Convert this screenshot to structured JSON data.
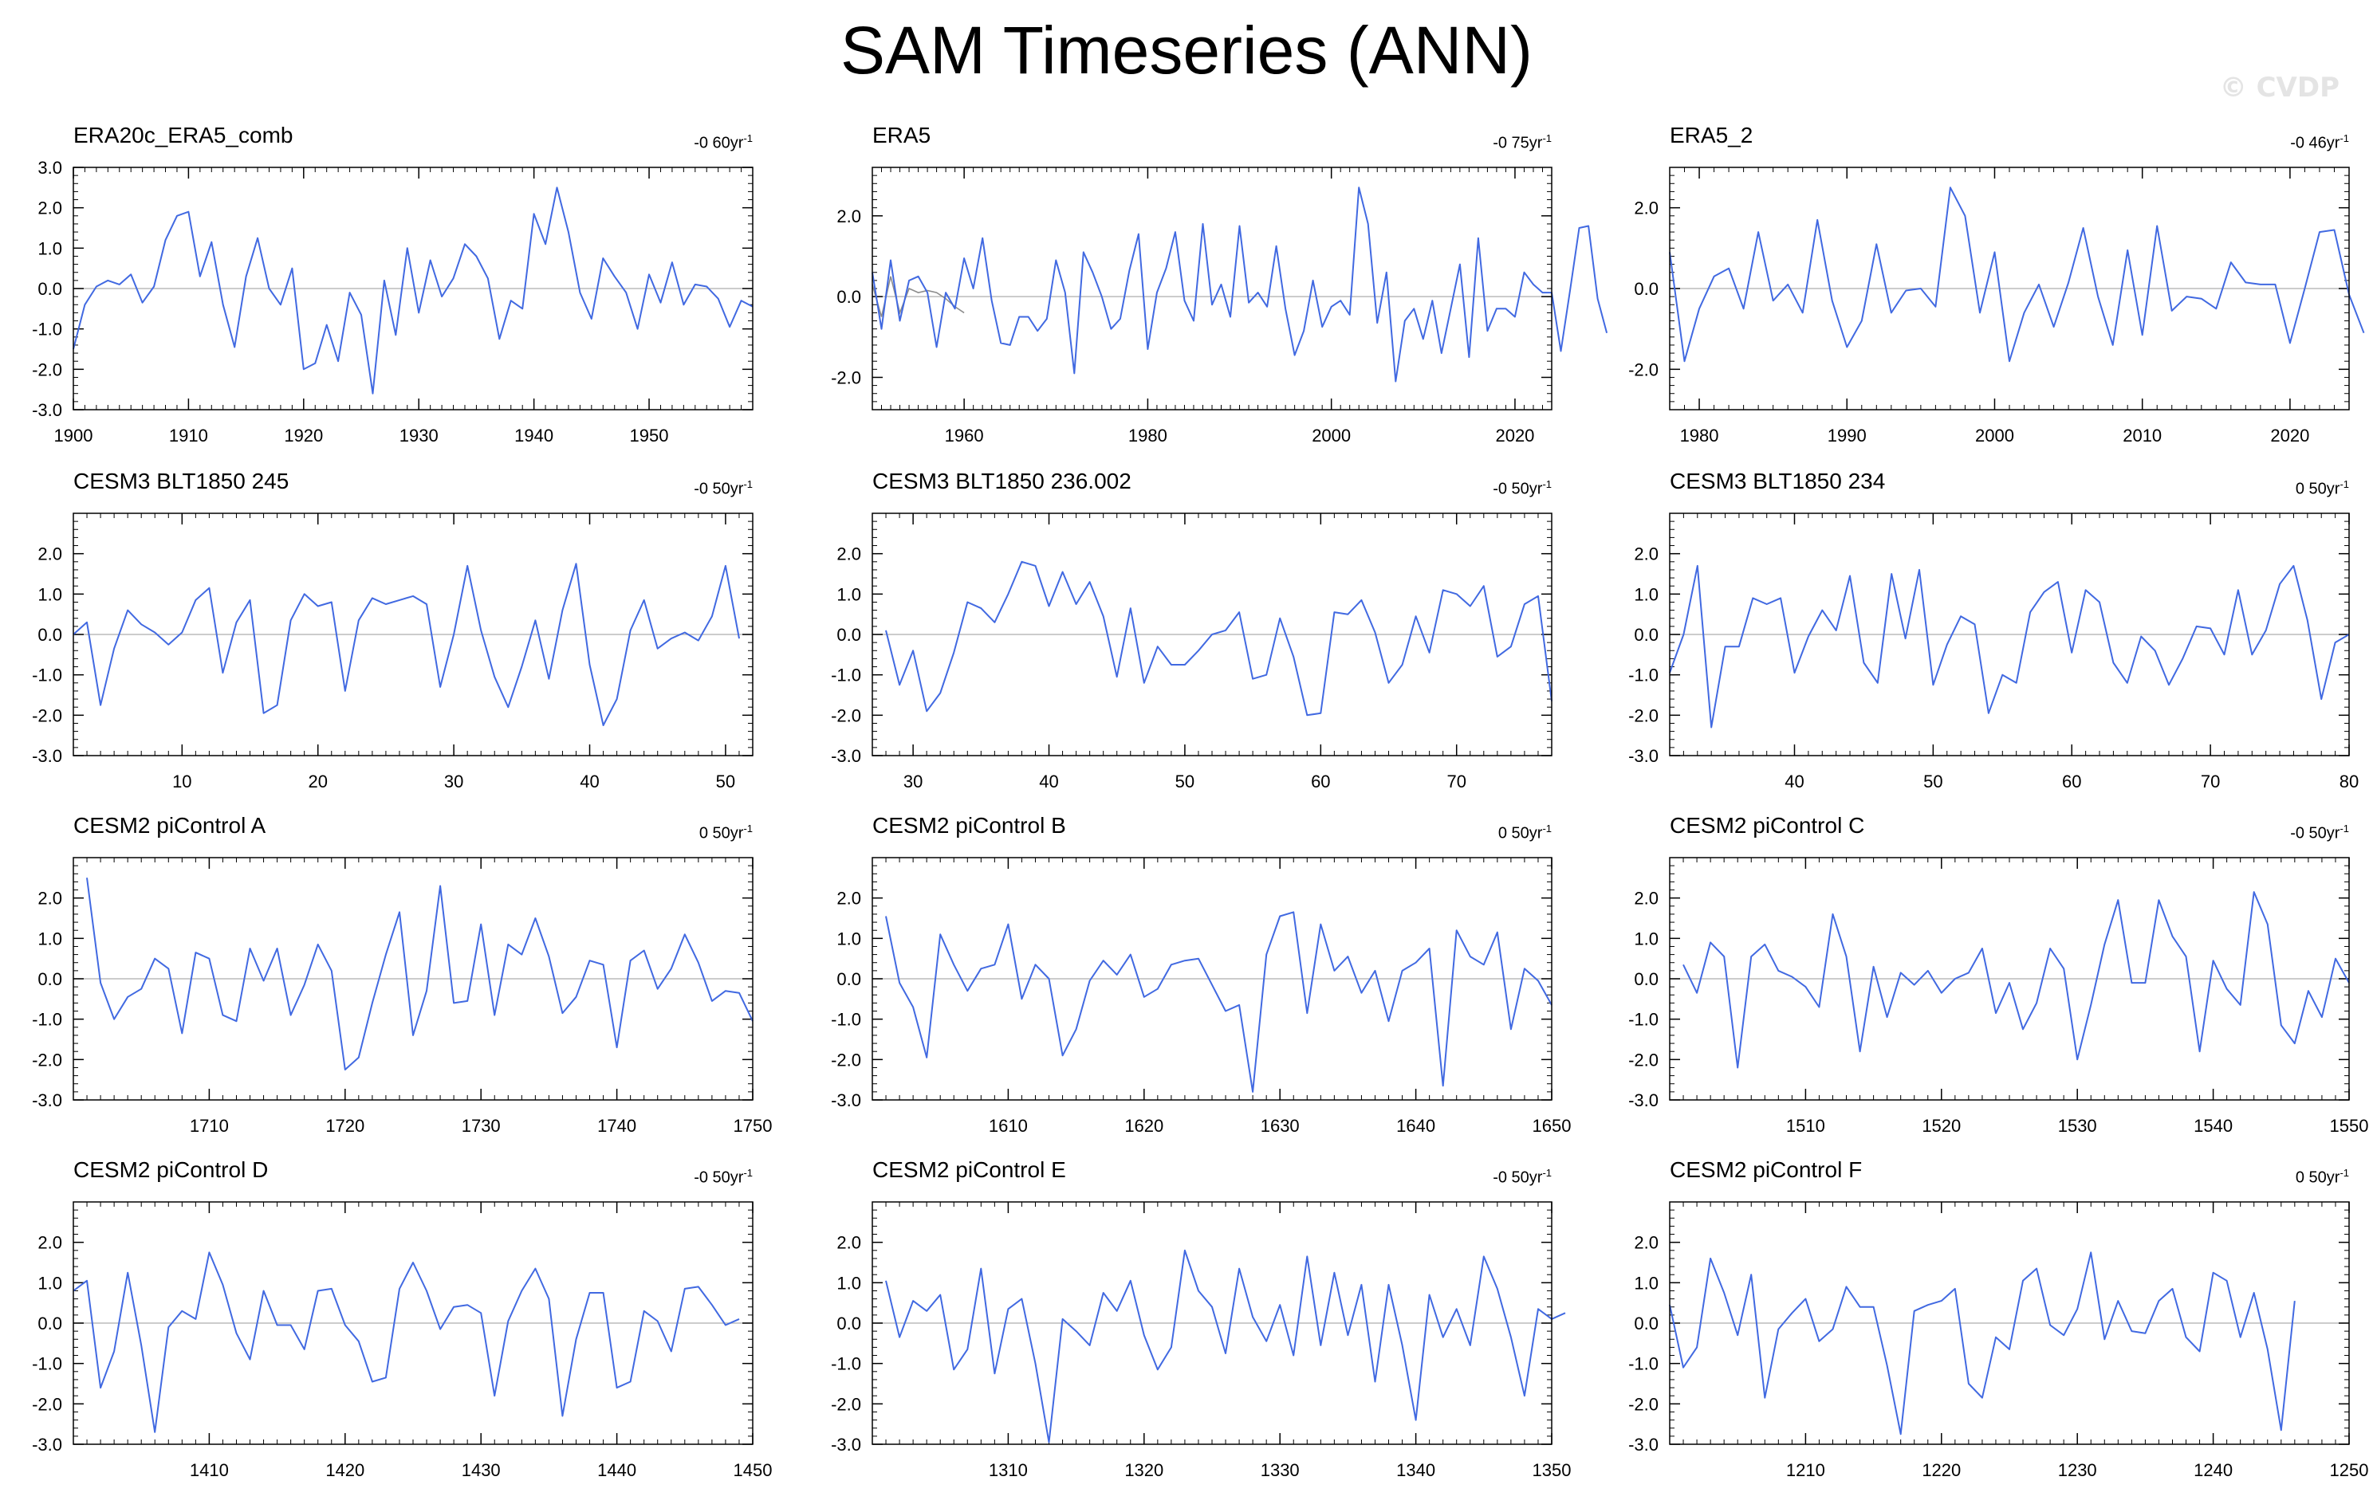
{
  "title": "SAM Timeseries (ANN)",
  "watermark": "© CVDP",
  "colors": {
    "series": "#4169e1",
    "secondary": "#8c8c8c",
    "zero_line": "#bcbcbc",
    "axis": "#000000"
  },
  "chart_data": [
    {
      "type": "line",
      "title": "ERA20c_ERA5_comb",
      "trend": "-0 60yr",
      "trend_unit": "-1",
      "xlim": [
        1900,
        1959
      ],
      "ylim": [
        -3.0,
        3.0
      ],
      "x_ticks": [
        1900,
        1910,
        1920,
        1930,
        1940,
        1950
      ],
      "x_tick_labels": [
        "1900",
        "1910",
        "1920",
        "1930",
        "1940",
        "1950"
      ],
      "y_ticks": [
        3.0,
        2.0,
        1.0,
        0.0,
        -1.0,
        -2.0,
        -3.0
      ],
      "y_tick_labels": [
        "3.0",
        "2.0",
        "1.0",
        "0.0",
        "-1.0",
        "-2.0",
        "-3.0"
      ],
      "x_start": 1900,
      "values": [
        -1.5,
        -0.4,
        0.05,
        0.2,
        0.1,
        0.35,
        -0.35,
        0.05,
        1.2,
        1.8,
        1.9,
        0.3,
        1.15,
        -0.4,
        -1.45,
        0.3,
        1.25,
        0.0,
        -0.4,
        0.5,
        -2.0,
        -1.85,
        -0.9,
        -1.8,
        -0.1,
        -0.65,
        -2.6,
        0.2,
        -1.15,
        1.0,
        -0.6,
        0.7,
        -0.2,
        0.25,
        1.1,
        0.8,
        0.25,
        -1.25,
        -0.3,
        -0.5,
        1.85,
        1.1,
        2.5,
        1.4,
        -0.1,
        -0.75,
        0.75,
        0.3,
        -0.1,
        -1.0,
        0.35,
        -0.35,
        0.65,
        -0.4,
        0.1,
        0.05,
        -0.25,
        -0.95,
        -0.3,
        -0.45
      ]
    },
    {
      "type": "line",
      "title": "ERA5",
      "trend": "-0 75yr",
      "trend_unit": "-1",
      "xlim": [
        1950,
        2024
      ],
      "ylim": [
        -2.8,
        3.2
      ],
      "x_ticks": [
        1960,
        1980,
        2000,
        2020
      ],
      "x_tick_labels": [
        "1960",
        "1980",
        "2000",
        "2020"
      ],
      "y_ticks": [
        2.0,
        0.0,
        -2.0
      ],
      "y_tick_labels": [
        "2.0",
        "0.0",
        "-2.0"
      ],
      "x_start": 1950,
      "values": [
        0.6,
        -0.8,
        0.9,
        -0.6,
        0.4,
        0.5,
        0.1,
        -1.25,
        0.1,
        -0.3,
        0.95,
        0.2,
        1.45,
        -0.1,
        -1.15,
        -1.2,
        -0.5,
        -0.5,
        -0.85,
        -0.55,
        0.9,
        0.1,
        -1.9,
        1.1,
        0.6,
        0.0,
        -0.8,
        -0.55,
        0.65,
        1.55,
        -1.3,
        0.1,
        0.7,
        1.6,
        -0.1,
        -0.6,
        1.8,
        -0.2,
        0.3,
        -0.5,
        1.75,
        -0.15,
        0.1,
        -0.25,
        1.25,
        -0.3,
        -1.45,
        -0.85,
        0.4,
        -0.75,
        -0.25,
        -0.1,
        -0.45,
        2.7,
        1.8,
        -0.65,
        0.6,
        -2.1,
        -0.6,
        -0.3,
        -1.05,
        -0.1,
        -1.4,
        -0.3,
        0.8,
        -1.5,
        1.45,
        -0.85,
        -0.3,
        -0.3,
        -0.5,
        0.6,
        0.3,
        0.1,
        0.1,
        -1.35,
        0.15,
        1.7,
        1.75,
        -0.05,
        -0.9
      ],
      "secondary_x_start": 1950,
      "secondary_values": [
        0.3,
        -0.5,
        0.5,
        -0.4,
        0.2,
        0.1,
        0.15,
        0.1,
        -0.05,
        -0.25,
        -0.4
      ]
    },
    {
      "type": "line",
      "title": "ERA5_2",
      "trend": "-0 46yr",
      "trend_unit": "-1",
      "xlim": [
        1978,
        2024
      ],
      "ylim": [
        -3.0,
        3.0
      ],
      "x_ticks": [
        1980,
        1990,
        2000,
        2010,
        2020
      ],
      "x_tick_labels": [
        "1980",
        "1990",
        "2000",
        "2010",
        "2020"
      ],
      "y_ticks": [
        2.0,
        0.0,
        -2.0
      ],
      "y_tick_labels": [
        "2.0",
        "0.0",
        "-2.0"
      ],
      "x_start": 1978,
      "values": [
        0.9,
        -1.8,
        -0.5,
        0.3,
        0.5,
        -0.5,
        1.4,
        -0.3,
        0.1,
        -0.6,
        1.7,
        -0.3,
        -1.45,
        -0.8,
        1.1,
        -0.6,
        -0.05,
        0.0,
        -0.45,
        2.5,
        1.8,
        -0.6,
        0.9,
        -1.8,
        -0.6,
        0.1,
        -0.95,
        0.15,
        1.5,
        -0.2,
        -1.4,
        0.95,
        -1.15,
        1.55,
        -0.55,
        -0.2,
        -0.25,
        -0.5,
        0.65,
        0.15,
        0.1,
        0.1,
        -1.35,
        0.0,
        1.4,
        1.45,
        -0.15,
        -1.1
      ]
    },
    {
      "type": "line",
      "title": "CESM3 BLT1850 245",
      "trend": "-0 50yr",
      "trend_unit": "-1",
      "xlim": [
        2,
        52
      ],
      "ylim": [
        -3.0,
        3.0
      ],
      "x_ticks": [
        10,
        20,
        30,
        40,
        50
      ],
      "x_tick_labels": [
        "10",
        "20",
        "30",
        "40",
        "50"
      ],
      "y_ticks": [
        2.0,
        1.0,
        0.0,
        -1.0,
        -2.0,
        -3.0
      ],
      "y_tick_labels": [
        "2.0",
        "1.0",
        "0.0",
        "-1.0",
        "-2.0",
        "-3.0"
      ],
      "x_start": 2,
      "values": [
        0.0,
        0.3,
        -1.75,
        -0.35,
        0.6,
        0.25,
        0.05,
        -0.25,
        0.05,
        0.85,
        1.15,
        -0.95,
        0.3,
        0.85,
        -1.95,
        -1.75,
        0.35,
        1.0,
        0.7,
        0.8,
        -1.4,
        0.35,
        0.9,
        0.75,
        0.85,
        0.95,
        0.75,
        -1.3,
        0.0,
        1.7,
        0.1,
        -1.05,
        -1.8,
        -0.8,
        0.35,
        -1.1,
        0.6,
        1.75,
        -0.75,
        -2.25,
        -1.6,
        0.1,
        0.85,
        -0.35,
        -0.1,
        0.05,
        -0.15,
        0.45,
        1.7,
        -0.1
      ]
    },
    {
      "type": "line",
      "title": "CESM3 BLT1850 236.002",
      "trend": "-0 50yr",
      "trend_unit": "-1",
      "xlim": [
        27,
        77
      ],
      "ylim": [
        -3.0,
        3.0
      ],
      "x_ticks": [
        30,
        40,
        50,
        60,
        70
      ],
      "x_tick_labels": [
        "30",
        "40",
        "50",
        "60",
        "70"
      ],
      "y_ticks": [
        2.0,
        1.0,
        0.0,
        -1.0,
        -2.0,
        -3.0
      ],
      "y_tick_labels": [
        "2.0",
        "1.0",
        "0.0",
        "-1.0",
        "-2.0",
        "-3.0"
      ],
      "x_start": 28,
      "values": [
        0.1,
        -1.25,
        -0.4,
        -1.9,
        -1.45,
        -0.45,
        0.8,
        0.65,
        0.3,
        1.0,
        1.8,
        1.7,
        0.7,
        1.55,
        0.75,
        1.3,
        0.45,
        -1.05,
        0.65,
        -1.2,
        -0.3,
        -0.75,
        -0.75,
        -0.4,
        0.0,
        0.1,
        0.55,
        -1.1,
        -1.0,
        0.4,
        -0.55,
        -2.0,
        -1.95,
        0.55,
        0.5,
        0.85,
        0.05,
        -1.2,
        -0.75,
        0.45,
        -0.45,
        1.1,
        1.0,
        0.7,
        1.2,
        -0.55,
        -0.3,
        0.75,
        0.95,
        -1.65
      ]
    },
    {
      "type": "line",
      "title": "CESM3 BLT1850 234",
      "trend": "0 50yr",
      "trend_unit": "-1",
      "xlim": [
        31,
        80
      ],
      "ylim": [
        -3.0,
        3.0
      ],
      "x_ticks": [
        40,
        50,
        60,
        70,
        80
      ],
      "x_tick_labels": [
        "40",
        "50",
        "60",
        "70",
        "80"
      ],
      "y_ticks": [
        2.0,
        1.0,
        0.0,
        -1.0,
        -2.0,
        -3.0
      ],
      "y_tick_labels": [
        "2.0",
        "1.0",
        "0.0",
        "-1.0",
        "-2.0",
        "-3.0"
      ],
      "x_start": 31,
      "values": [
        -0.95,
        0.0,
        1.7,
        -2.3,
        -0.3,
        -0.3,
        0.9,
        0.75,
        0.9,
        -0.95,
        -0.05,
        0.6,
        0.1,
        1.45,
        -0.7,
        -1.2,
        1.5,
        -0.1,
        1.6,
        -1.25,
        -0.25,
        0.45,
        0.25,
        -1.95,
        -1.0,
        -1.2,
        0.55,
        1.05,
        1.3,
        -0.45,
        1.1,
        0.8,
        -0.7,
        -1.2,
        -0.05,
        -0.4,
        -1.25,
        -0.6,
        0.2,
        0.15,
        -0.5,
        1.1,
        -0.5,
        0.1,
        1.25,
        1.7,
        0.35,
        -1.6,
        -0.2,
        0.0
      ]
    },
    {
      "type": "line",
      "title": "CESM2 piControl A",
      "trend": "0 50yr",
      "trend_unit": "-1",
      "xlim": [
        1700,
        1750
      ],
      "ylim": [
        -3.0,
        3.0
      ],
      "x_ticks": [
        1710,
        1720,
        1730,
        1740,
        1750
      ],
      "x_tick_labels": [
        "1710",
        "1720",
        "1730",
        "1740",
        "1750"
      ],
      "y_ticks": [
        2.0,
        1.0,
        0.0,
        -1.0,
        -2.0,
        -3.0
      ],
      "y_tick_labels": [
        "2.0",
        "1.0",
        "0.0",
        "-1.0",
        "-2.0",
        "-3.0"
      ],
      "x_start": 1701,
      "values": [
        2.5,
        -0.1,
        -1.0,
        -0.45,
        -0.25,
        0.5,
        0.25,
        -1.35,
        0.65,
        0.5,
        -0.9,
        -1.05,
        0.75,
        -0.05,
        0.75,
        -0.9,
        -0.15,
        0.85,
        0.2,
        -2.25,
        -1.95,
        -0.6,
        0.6,
        1.65,
        -1.4,
        -0.3,
        2.3,
        -0.6,
        -0.55,
        1.35,
        -0.9,
        0.85,
        0.6,
        1.5,
        0.55,
        -0.85,
        -0.45,
        0.45,
        0.35,
        -1.7,
        0.45,
        0.7,
        -0.25,
        0.25,
        1.1,
        0.4,
        -0.55,
        -0.3,
        -0.35,
        -1.05
      ]
    },
    {
      "type": "line",
      "title": "CESM2 piControl B",
      "trend": "0 50yr",
      "trend_unit": "-1",
      "xlim": [
        1600,
        1650
      ],
      "ylim": [
        -3.0,
        3.0
      ],
      "x_ticks": [
        1610,
        1620,
        1630,
        1640,
        1650
      ],
      "x_tick_labels": [
        "1610",
        "1620",
        "1630",
        "1640",
        "1650"
      ],
      "y_ticks": [
        2.0,
        1.0,
        0.0,
        -1.0,
        -2.0,
        -3.0
      ],
      "y_tick_labels": [
        "2.0",
        "1.0",
        "0.0",
        "-1.0",
        "-2.0",
        "-3.0"
      ],
      "x_start": 1601,
      "values": [
        1.55,
        -0.1,
        -0.7,
        -1.95,
        1.1,
        0.35,
        -0.3,
        0.25,
        0.35,
        1.35,
        -0.5,
        0.35,
        0.0,
        -1.9,
        -1.25,
        -0.05,
        0.45,
        0.1,
        0.6,
        -0.45,
        -0.25,
        0.35,
        0.45,
        0.5,
        -0.15,
        -0.8,
        -0.65,
        -2.8,
        0.6,
        1.55,
        1.65,
        -0.85,
        1.35,
        0.2,
        0.55,
        -0.35,
        0.2,
        -1.05,
        0.2,
        0.4,
        0.75,
        -2.65,
        1.2,
        0.55,
        0.35,
        1.15,
        -1.25,
        0.25,
        -0.05,
        -0.65
      ]
    },
    {
      "type": "line",
      "title": "CESM2 piControl C",
      "trend": "-0 50yr",
      "trend_unit": "-1",
      "xlim": [
        1500,
        1550
      ],
      "ylim": [
        -3.0,
        3.0
      ],
      "x_ticks": [
        1510,
        1520,
        1530,
        1540,
        1550
      ],
      "x_tick_labels": [
        "1510",
        "1520",
        "1530",
        "1540",
        "1550"
      ],
      "y_ticks": [
        2.0,
        1.0,
        0.0,
        -1.0,
        -2.0,
        -3.0
      ],
      "y_tick_labels": [
        "2.0",
        "1.0",
        "0.0",
        "-1.0",
        "-2.0",
        "-3.0"
      ],
      "x_start": 1501,
      "values": [
        0.35,
        -0.35,
        0.9,
        0.55,
        -2.2,
        0.55,
        0.85,
        0.2,
        0.05,
        -0.2,
        -0.7,
        1.6,
        0.55,
        -1.8,
        0.3,
        -0.95,
        0.15,
        -0.15,
        0.2,
        -0.35,
        0.0,
        0.15,
        0.75,
        -0.85,
        -0.1,
        -1.25,
        -0.6,
        0.75,
        0.25,
        -2.0,
        -0.65,
        0.85,
        1.95,
        -0.1,
        -0.1,
        1.95,
        1.05,
        0.55,
        -1.8,
        0.45,
        -0.25,
        -0.65,
        2.15,
        1.35,
        -1.15,
        -1.6,
        -0.3,
        -0.95,
        0.5,
        -0.1
      ]
    },
    {
      "type": "line",
      "title": "CESM2 piControl D",
      "trend": "-0 50yr",
      "trend_unit": "-1",
      "xlim": [
        1400,
        1450
      ],
      "ylim": [
        -3.0,
        3.0
      ],
      "x_ticks": [
        1410,
        1420,
        1430,
        1440,
        1450
      ],
      "x_tick_labels": [
        "1410",
        "1420",
        "1430",
        "1440",
        "1450"
      ],
      "y_ticks": [
        2.0,
        1.0,
        0.0,
        -1.0,
        -2.0,
        -3.0
      ],
      "y_tick_labels": [
        "2.0",
        "1.0",
        "0.0",
        "-1.0",
        "-2.0",
        "-3.0"
      ],
      "x_start": 1400,
      "values": [
        0.8,
        1.05,
        -1.6,
        -0.7,
        1.25,
        -0.55,
        -2.7,
        -0.1,
        0.3,
        0.1,
        1.75,
        0.95,
        -0.25,
        -0.9,
        0.8,
        -0.05,
        -0.05,
        -0.65,
        0.8,
        0.85,
        -0.05,
        -0.45,
        -1.45,
        -1.35,
        0.85,
        1.5,
        0.8,
        -0.15,
        0.4,
        0.45,
        0.25,
        -1.8,
        0.05,
        0.8,
        1.35,
        0.6,
        -2.3,
        -0.4,
        0.75,
        0.75,
        -1.6,
        -1.45,
        0.3,
        0.05,
        -0.7,
        0.85,
        0.9,
        0.45,
        -0.05,
        0.1
      ]
    },
    {
      "type": "line",
      "title": "CESM2 piControl E",
      "trend": "-0 50yr",
      "trend_unit": "-1",
      "xlim": [
        1300,
        1350
      ],
      "ylim": [
        -3.0,
        3.0
      ],
      "x_ticks": [
        1310,
        1320,
        1330,
        1340,
        1350
      ],
      "x_tick_labels": [
        "1310",
        "1320",
        "1330",
        "1340",
        "1350"
      ],
      "y_ticks": [
        2.0,
        1.0,
        0.0,
        -1.0,
        -2.0,
        -3.0
      ],
      "y_tick_labels": [
        "2.0",
        "1.0",
        "0.0",
        "-1.0",
        "-2.0",
        "-3.0"
      ],
      "x_start": 1301,
      "values": [
        1.05,
        -0.35,
        0.55,
        0.3,
        0.7,
        -1.15,
        -0.65,
        1.35,
        -1.25,
        0.35,
        0.6,
        -1.0,
        -2.95,
        0.1,
        -0.2,
        -0.55,
        0.75,
        0.3,
        1.05,
        -0.3,
        -1.15,
        -0.6,
        1.8,
        0.8,
        0.4,
        -0.75,
        1.35,
        0.15,
        -0.45,
        0.45,
        -0.8,
        1.65,
        -0.55,
        1.25,
        -0.3,
        0.95,
        -1.45,
        0.95,
        -0.55,
        -2.4,
        0.7,
        -0.35,
        0.35,
        -0.55,
        1.65,
        0.85,
        -0.35,
        -1.8,
        0.35,
        0.1,
        0.25
      ]
    },
    {
      "type": "line",
      "title": "CESM2 piControl F",
      "trend": "0 50yr",
      "trend_unit": "-1",
      "xlim": [
        1200,
        1250
      ],
      "ylim": [
        -3.0,
        3.0
      ],
      "x_ticks": [
        1210,
        1220,
        1230,
        1240,
        1250
      ],
      "x_tick_labels": [
        "1210",
        "1220",
        "1230",
        "1240",
        "1250"
      ],
      "y_ticks": [
        2.0,
        1.0,
        0.0,
        -1.0,
        -2.0,
        -3.0
      ],
      "y_tick_labels": [
        "2.0",
        "1.0",
        "0.0",
        "-1.0",
        "-2.0",
        "-3.0"
      ],
      "x_start": 1200,
      "values": [
        0.45,
        -1.1,
        -0.6,
        1.6,
        0.75,
        -0.3,
        1.2,
        -1.85,
        -0.15,
        0.25,
        0.6,
        -0.45,
        -0.15,
        0.9,
        0.4,
        0.4,
        -1.05,
        -2.75,
        0.3,
        0.45,
        0.55,
        0.85,
        -1.5,
        -1.85,
        -0.35,
        -0.65,
        1.05,
        1.35,
        -0.05,
        -0.3,
        0.35,
        1.75,
        -0.4,
        0.55,
        -0.2,
        -0.25,
        0.55,
        0.85,
        -0.35,
        -0.7,
        1.25,
        1.05,
        -0.35,
        0.75,
        -0.65,
        -2.65,
        0.55
      ]
    }
  ]
}
